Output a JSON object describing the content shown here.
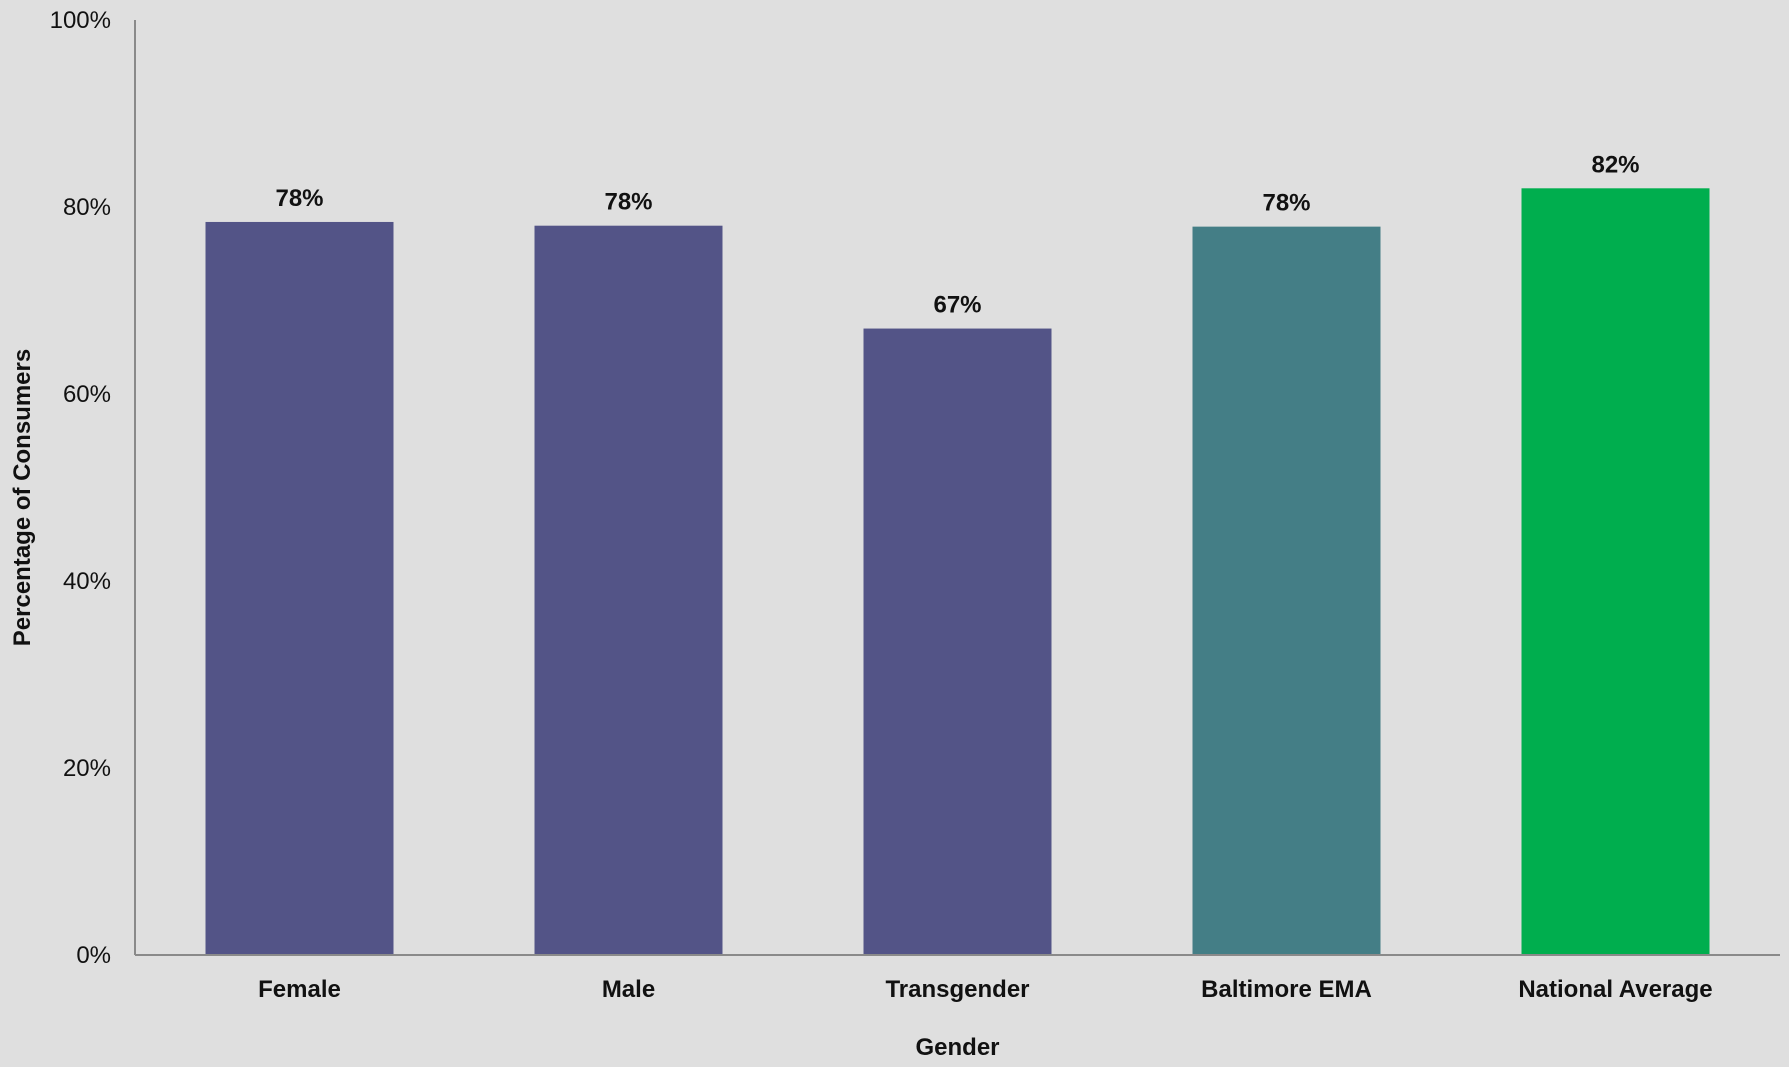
{
  "chart_data": {
    "type": "bar",
    "title": "",
    "xlabel": "Gender",
    "ylabel": "Percentage of Consumers",
    "ylim": [
      0,
      100
    ],
    "yticks": [
      0,
      20,
      40,
      60,
      80,
      100
    ],
    "ytick_labels": [
      "0%",
      "20%",
      "40%",
      "60%",
      "80%",
      "100%"
    ],
    "categories": [
      "Female",
      "Male",
      "Transgender",
      "Baltimore EMA",
      "National Average"
    ],
    "values": [
      78.4,
      78.0,
      67.0,
      77.9,
      82.0
    ],
    "data_labels": [
      "78%",
      "78%",
      "67%",
      "78%",
      "82%"
    ],
    "bar_colors": [
      "#535487",
      "#535487",
      "#535487",
      "#447e86",
      "#00ae4e"
    ],
    "grid": false,
    "legend": "none"
  },
  "colors": {
    "background": "#dfdfdf",
    "axis": "#8a8a8a"
  }
}
